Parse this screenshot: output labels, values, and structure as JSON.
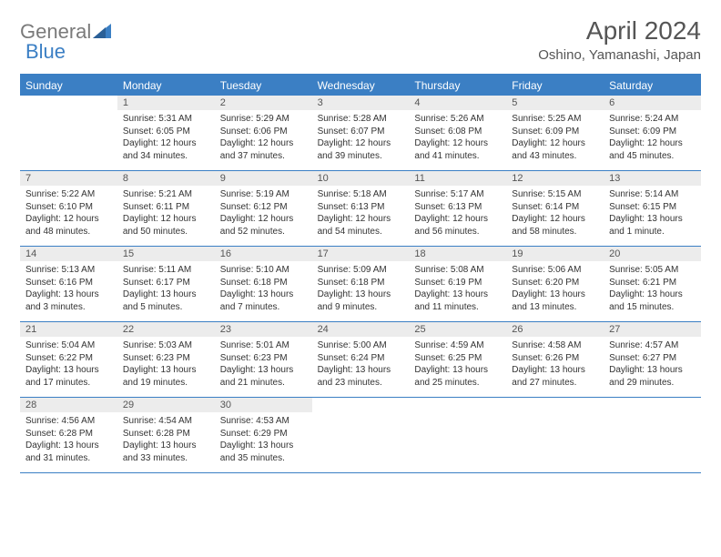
{
  "logo": {
    "word1": "General",
    "word2": "Blue"
  },
  "title": "April 2024",
  "location": "Oshino, Yamanashi, Japan",
  "colors": {
    "accent": "#3b7fc4",
    "header_bg": "#3b7fc4",
    "header_text": "#ffffff",
    "daynum_bg": "#ececec",
    "text": "#333333",
    "logo_gray": "#7a7a7a"
  },
  "day_names": [
    "Sunday",
    "Monday",
    "Tuesday",
    "Wednesday",
    "Thursday",
    "Friday",
    "Saturday"
  ],
  "weeks": [
    [
      {
        "empty": true
      },
      {
        "n": "1",
        "sr": "5:31 AM",
        "ss": "6:05 PM",
        "dl": "12 hours and 34 minutes."
      },
      {
        "n": "2",
        "sr": "5:29 AM",
        "ss": "6:06 PM",
        "dl": "12 hours and 37 minutes."
      },
      {
        "n": "3",
        "sr": "5:28 AM",
        "ss": "6:07 PM",
        "dl": "12 hours and 39 minutes."
      },
      {
        "n": "4",
        "sr": "5:26 AM",
        "ss": "6:08 PM",
        "dl": "12 hours and 41 minutes."
      },
      {
        "n": "5",
        "sr": "5:25 AM",
        "ss": "6:09 PM",
        "dl": "12 hours and 43 minutes."
      },
      {
        "n": "6",
        "sr": "5:24 AM",
        "ss": "6:09 PM",
        "dl": "12 hours and 45 minutes."
      }
    ],
    [
      {
        "n": "7",
        "sr": "5:22 AM",
        "ss": "6:10 PM",
        "dl": "12 hours and 48 minutes."
      },
      {
        "n": "8",
        "sr": "5:21 AM",
        "ss": "6:11 PM",
        "dl": "12 hours and 50 minutes."
      },
      {
        "n": "9",
        "sr": "5:19 AM",
        "ss": "6:12 PM",
        "dl": "12 hours and 52 minutes."
      },
      {
        "n": "10",
        "sr": "5:18 AM",
        "ss": "6:13 PM",
        "dl": "12 hours and 54 minutes."
      },
      {
        "n": "11",
        "sr": "5:17 AM",
        "ss": "6:13 PM",
        "dl": "12 hours and 56 minutes."
      },
      {
        "n": "12",
        "sr": "5:15 AM",
        "ss": "6:14 PM",
        "dl": "12 hours and 58 minutes."
      },
      {
        "n": "13",
        "sr": "5:14 AM",
        "ss": "6:15 PM",
        "dl": "13 hours and 1 minute."
      }
    ],
    [
      {
        "n": "14",
        "sr": "5:13 AM",
        "ss": "6:16 PM",
        "dl": "13 hours and 3 minutes."
      },
      {
        "n": "15",
        "sr": "5:11 AM",
        "ss": "6:17 PM",
        "dl": "13 hours and 5 minutes."
      },
      {
        "n": "16",
        "sr": "5:10 AM",
        "ss": "6:18 PM",
        "dl": "13 hours and 7 minutes."
      },
      {
        "n": "17",
        "sr": "5:09 AM",
        "ss": "6:18 PM",
        "dl": "13 hours and 9 minutes."
      },
      {
        "n": "18",
        "sr": "5:08 AM",
        "ss": "6:19 PM",
        "dl": "13 hours and 11 minutes."
      },
      {
        "n": "19",
        "sr": "5:06 AM",
        "ss": "6:20 PM",
        "dl": "13 hours and 13 minutes."
      },
      {
        "n": "20",
        "sr": "5:05 AM",
        "ss": "6:21 PM",
        "dl": "13 hours and 15 minutes."
      }
    ],
    [
      {
        "n": "21",
        "sr": "5:04 AM",
        "ss": "6:22 PM",
        "dl": "13 hours and 17 minutes."
      },
      {
        "n": "22",
        "sr": "5:03 AM",
        "ss": "6:23 PM",
        "dl": "13 hours and 19 minutes."
      },
      {
        "n": "23",
        "sr": "5:01 AM",
        "ss": "6:23 PM",
        "dl": "13 hours and 21 minutes."
      },
      {
        "n": "24",
        "sr": "5:00 AM",
        "ss": "6:24 PM",
        "dl": "13 hours and 23 minutes."
      },
      {
        "n": "25",
        "sr": "4:59 AM",
        "ss": "6:25 PM",
        "dl": "13 hours and 25 minutes."
      },
      {
        "n": "26",
        "sr": "4:58 AM",
        "ss": "6:26 PM",
        "dl": "13 hours and 27 minutes."
      },
      {
        "n": "27",
        "sr": "4:57 AM",
        "ss": "6:27 PM",
        "dl": "13 hours and 29 minutes."
      }
    ],
    [
      {
        "n": "28",
        "sr": "4:56 AM",
        "ss": "6:28 PM",
        "dl": "13 hours and 31 minutes."
      },
      {
        "n": "29",
        "sr": "4:54 AM",
        "ss": "6:28 PM",
        "dl": "13 hours and 33 minutes."
      },
      {
        "n": "30",
        "sr": "4:53 AM",
        "ss": "6:29 PM",
        "dl": "13 hours and 35 minutes."
      },
      {
        "empty": true
      },
      {
        "empty": true
      },
      {
        "empty": true
      },
      {
        "empty": true
      }
    ]
  ],
  "labels": {
    "sunrise": "Sunrise:",
    "sunset": "Sunset:",
    "daylight": "Daylight:"
  }
}
